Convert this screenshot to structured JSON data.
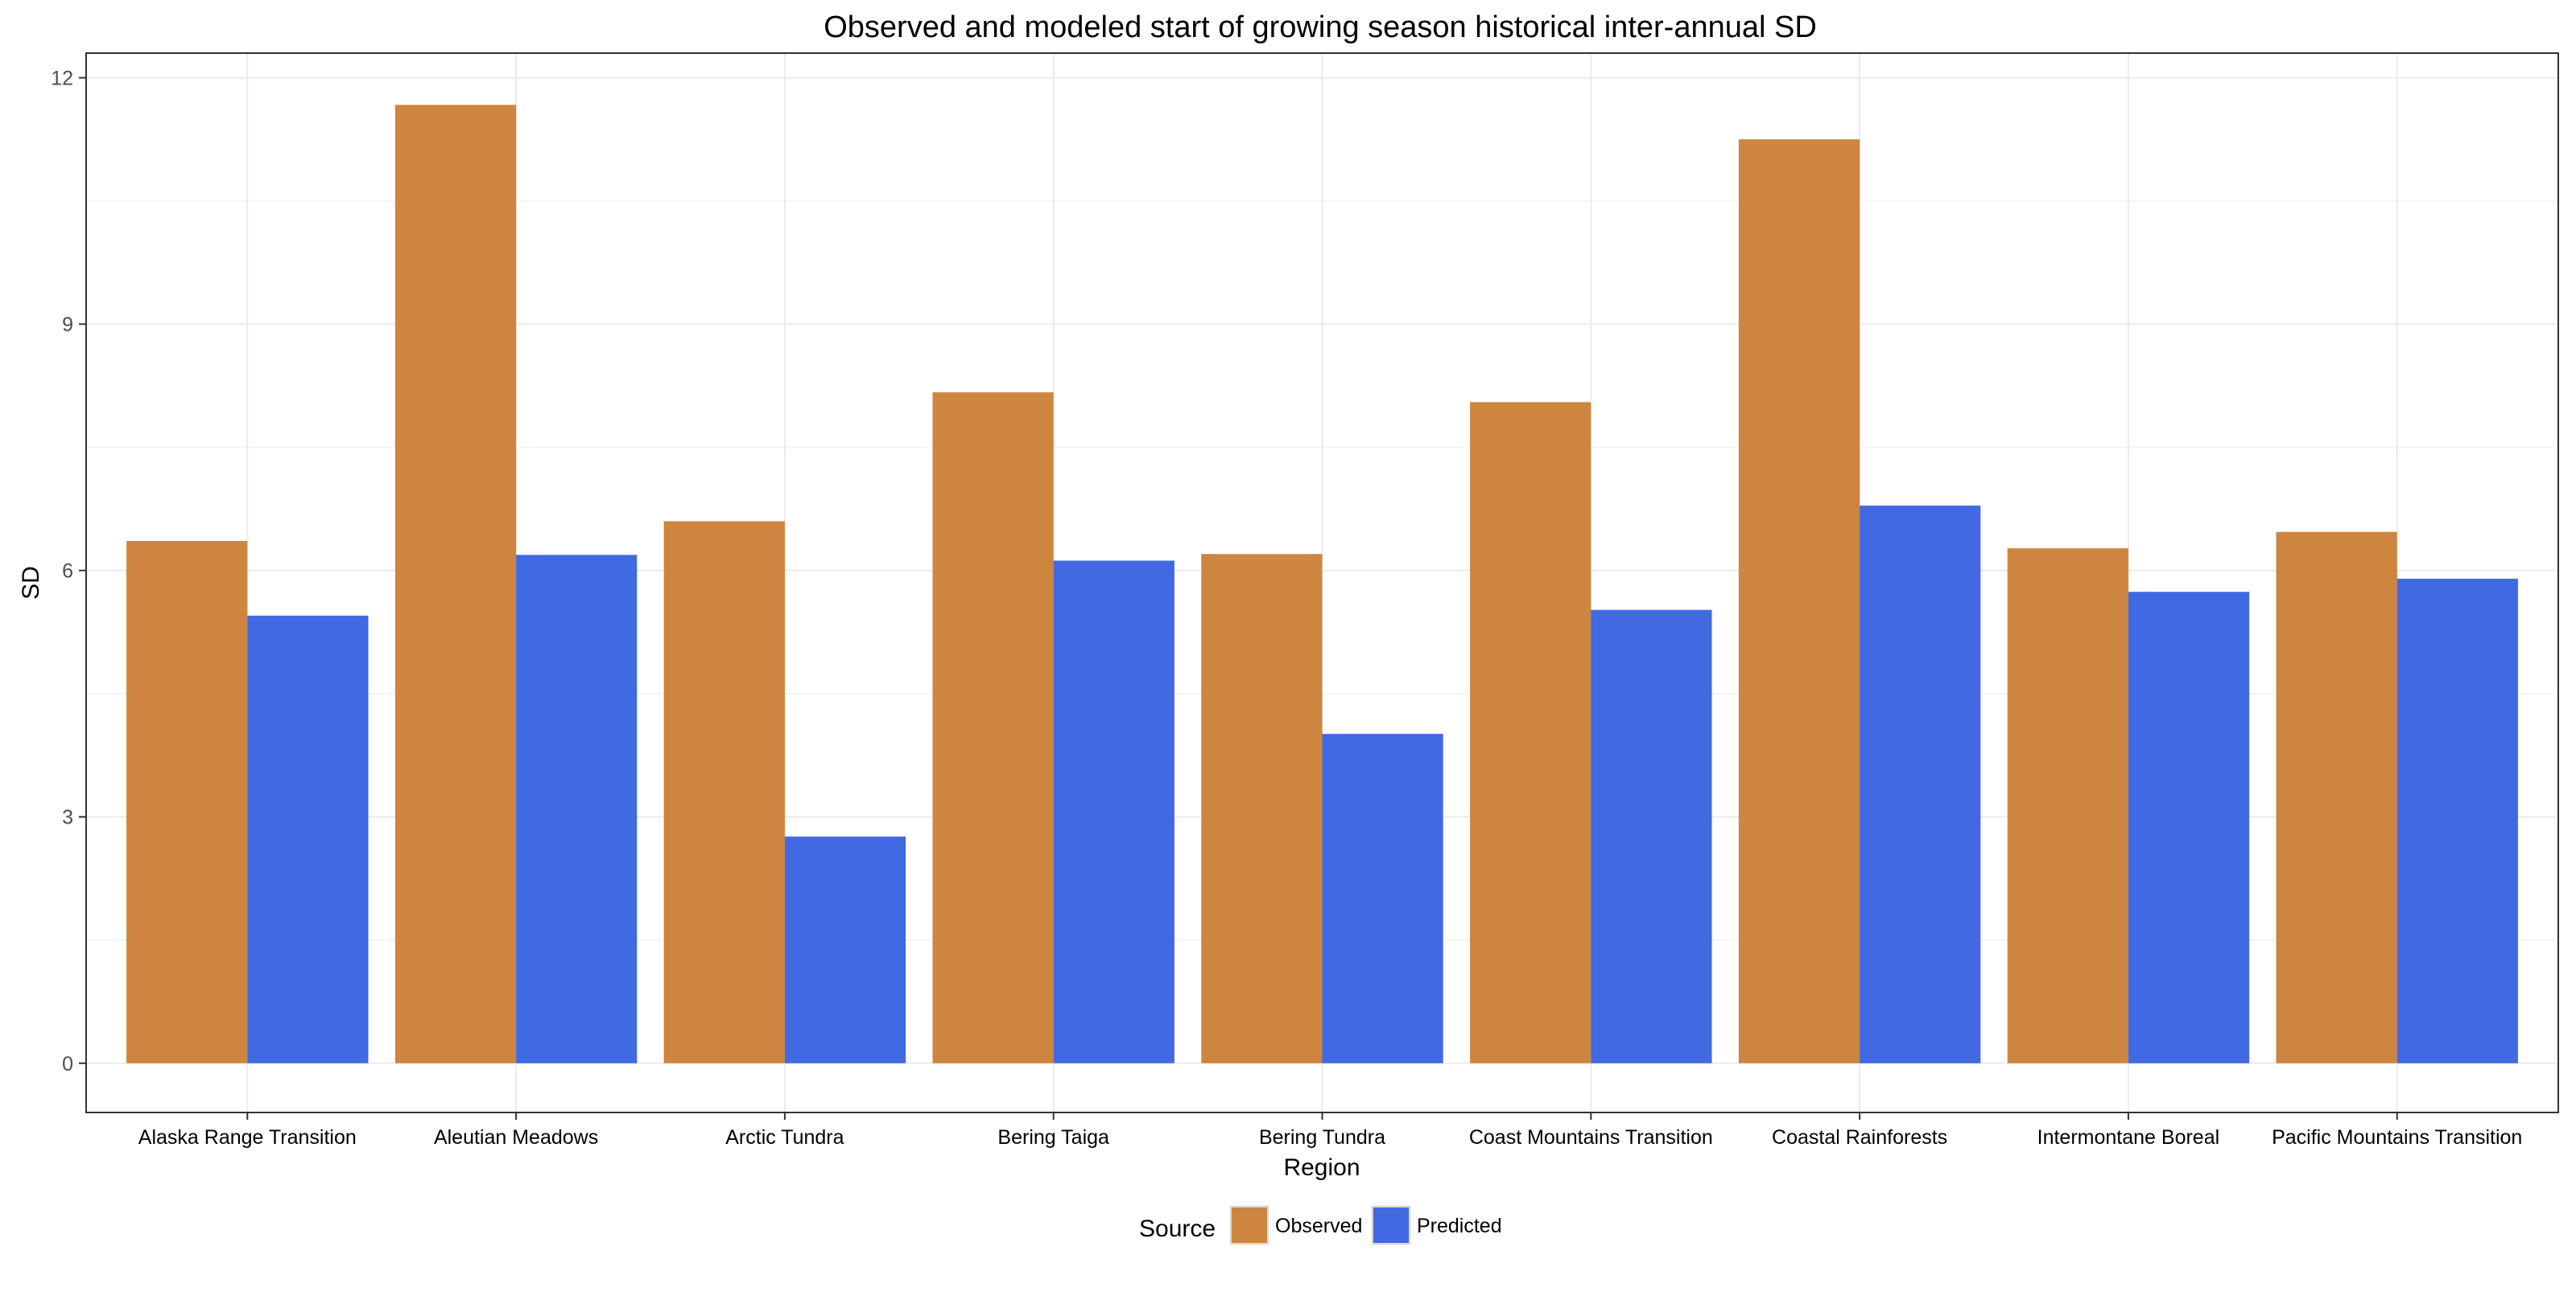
{
  "chart_data": {
    "type": "bar",
    "title": "Observed and modeled start of growing season historical inter-annual SD",
    "xlabel": "Region",
    "ylabel": "SD",
    "ylim": [
      -0.6,
      12.3
    ],
    "yticks": [
      0,
      3,
      6,
      9,
      12
    ],
    "grid": true,
    "legend": {
      "title": "Source",
      "position": "bottom"
    },
    "categories": [
      "Alaska Range Transition",
      "Aleutian Meadows",
      "Arctic Tundra",
      "Bering Taiga",
      "Bering Tundra",
      "Coast Mountains Transition",
      "Coastal Rainforests",
      "Intermontane Boreal",
      "Pacific Mountains Transition"
    ],
    "series": [
      {
        "name": "Observed",
        "color": "#CD853F",
        "values": [
          6.36,
          11.67,
          6.6,
          8.17,
          6.2,
          8.05,
          11.25,
          6.27,
          6.47
        ]
      },
      {
        "name": "Predicted",
        "color": "#4169E1",
        "values": [
          5.45,
          6.19,
          2.76,
          6.12,
          4.01,
          5.52,
          6.79,
          5.74,
          5.9
        ]
      }
    ]
  }
}
